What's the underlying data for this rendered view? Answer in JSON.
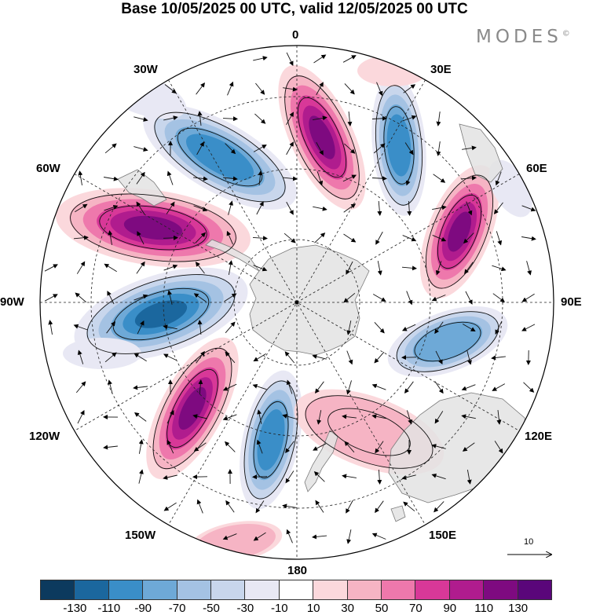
{
  "title": "Base 10/05/2025 00 UTC, valid 12/05/2025 00 UTC",
  "brand": "MODES",
  "brand_mark": "©",
  "longitude_labels": {
    "lon_0": "0",
    "lon_30e": "30E",
    "lon_60e": "60E",
    "lon_90e": "90E",
    "lon_120e": "120E",
    "lon_150e": "150E",
    "lon_180": "180",
    "lon_150w": "150W",
    "lon_120w": "120W",
    "lon_90w": "90W",
    "lon_60w": "60W",
    "lon_30w": "30W"
  },
  "reference_vector_label": "10",
  "colorbar": {
    "colors": [
      "#0c3a5e",
      "#1b679e",
      "#3a8ec8",
      "#6ea9d7",
      "#a4c2e3",
      "#c8d6ec",
      "#e8e8f4",
      "#ffffff",
      "#fbd8dc",
      "#f6b4c4",
      "#ee78ac",
      "#d83898",
      "#b01c8e",
      "#7e0a80",
      "#5a067a"
    ],
    "tick_labels": [
      "-130",
      "-110",
      "-90",
      "-70",
      "-50",
      "-30",
      "-10",
      "10",
      "30",
      "50",
      "70",
      "90",
      "110",
      "130"
    ]
  },
  "map_style": {
    "projection": "south-polar-stereographic",
    "land_color": "#e6e6e6",
    "grid": "dashed"
  }
}
